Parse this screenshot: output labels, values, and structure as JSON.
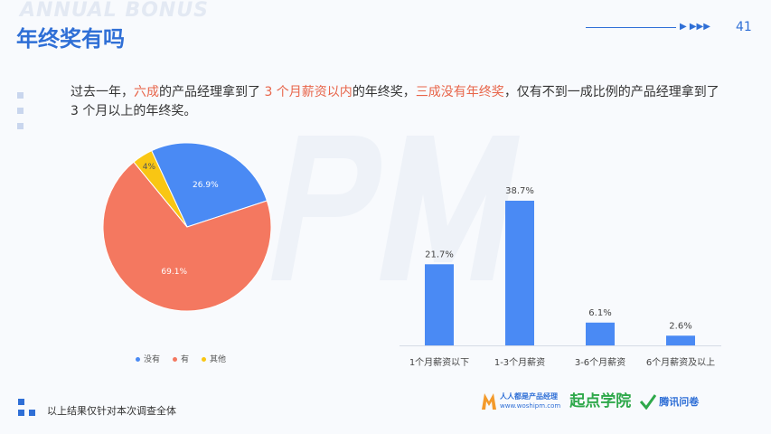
{
  "header": {
    "watermark": "ANNUAL BONUS",
    "title": "年终奖有吗",
    "arrows": "▶ ▶▶▶",
    "page_number": "41"
  },
  "summary": {
    "p1": "过去一年，",
    "h1": "六成",
    "p2": "的产品经理拿到了 ",
    "h2": "3 个月薪资以内",
    "p3": "的年终奖，",
    "h3": "三成没有年终奖",
    "p4": "，仅有不到一成比例的产品经理拿到了 3 个月以上的年终奖。"
  },
  "footer": {
    "note": "以上结果仅针对本次调查全体",
    "logo1": "人人都是产品经理",
    "logo1_url": "www.woshipm.com",
    "logo2": "起点学院",
    "logo3": "腾讯问卷"
  },
  "chart_data": [
    {
      "type": "pie",
      "labels": [
        "没有",
        "有",
        "其他"
      ],
      "values": [
        26.9,
        69.1,
        4
      ],
      "value_labels": [
        "26.9%",
        "69.1%",
        "4%"
      ],
      "colors": [
        "#4a8af4",
        "#f47860",
        "#f9c613"
      ],
      "legend_placement": "bottom"
    },
    {
      "type": "bar",
      "categories": [
        "1个月薪资以下",
        "1-3个月薪资",
        "3-6个月薪资",
        "6个月薪资及以上"
      ],
      "values": [
        21.7,
        38.7,
        6.1,
        2.6
      ],
      "value_labels": [
        "21.7%",
        "38.7%",
        "6.1%",
        "2.6%"
      ],
      "color": "#4a8af4",
      "ylim": [
        0,
        40
      ]
    }
  ]
}
